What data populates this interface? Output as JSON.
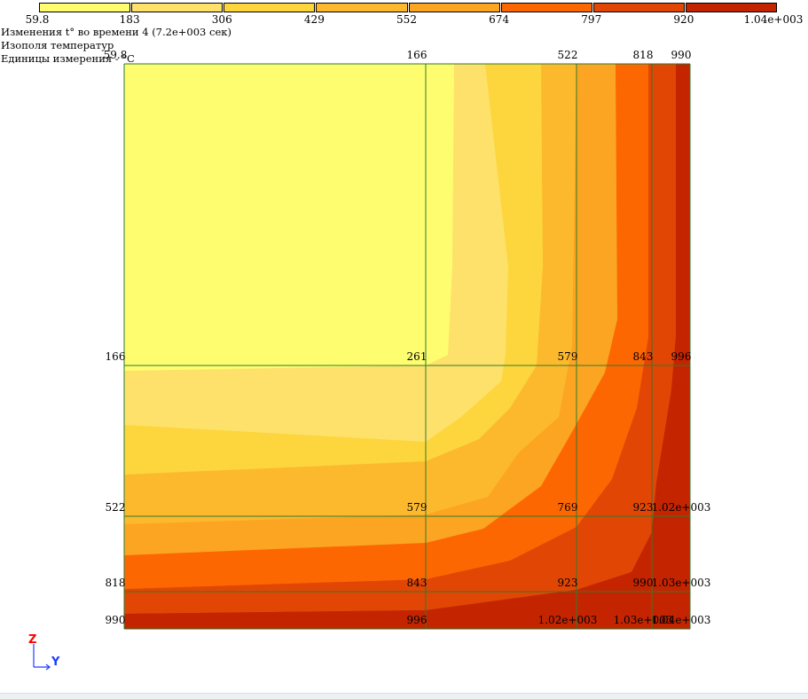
{
  "legend": {
    "labels": [
      "59.8",
      "183",
      "306",
      "429",
      "552",
      "674",
      "797",
      "920",
      "1.04e+003"
    ],
    "colors": [
      "#fefd6f",
      "#fde16a",
      "#fdd63d",
      "#fdb92d",
      "#fca522",
      "#fd6702",
      "#e24604",
      "#c42500",
      "#7f0200"
    ]
  },
  "info": {
    "line1": "Изменения t° во времени 4 (7.2e+003 сек)",
    "line2": "Изополя температур",
    "line3": "Единицы измерения - °C"
  },
  "axes": {
    "z": "Z",
    "y": "Y"
  },
  "chart_data": {
    "type": "heatmap",
    "title": "Изополя температур",
    "x": [
      0,
      1,
      2,
      3,
      4
    ],
    "y": [
      0,
      1,
      2,
      3,
      4
    ],
    "values": [
      [
        "59.8",
        "166",
        "522",
        "818",
        "990"
      ],
      [
        "166",
        "261",
        "579",
        "843",
        "996"
      ],
      [
        "522",
        "579",
        "769",
        "923",
        "1.02e+003"
      ],
      [
        "818",
        "843",
        "923",
        "990",
        "1.03e+003"
      ],
      [
        "990",
        "996",
        "1.02e+003",
        "1.03e+003",
        "1.04e+003"
      ]
    ],
    "levels": [
      59.8,
      183,
      306,
      429,
      552,
      674,
      797,
      920,
      1040
    ],
    "unit": "°C"
  }
}
